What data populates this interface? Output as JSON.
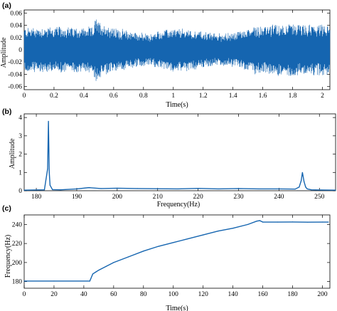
{
  "chart_data": [
    {
      "panel": "(a)",
      "type": "line",
      "xlabel": "Time(s)",
      "ylabel": "Amplitude",
      "xlim": [
        0,
        2.05
      ],
      "ylim": [
        -0.065,
        0.065
      ],
      "xticks": [
        0,
        0.2,
        0.4,
        0.6,
        0.8,
        1,
        1.2,
        1.4,
        1.6,
        1.8,
        2
      ],
      "yticks": [
        -0.06,
        -0.04,
        -0.02,
        0,
        0.02,
        0.04,
        0.06
      ],
      "xtick_labels": [
        "0",
        "0.2",
        "0.4",
        "0.6",
        "0.8",
        "1",
        "1.2",
        "1.4",
        "1.6",
        "1.8",
        "2"
      ],
      "ytick_labels": [
        "-0.06",
        "-0.04",
        "-0.02",
        "0",
        "0.02",
        "0.04",
        "0.06"
      ],
      "envelope": {
        "t": [
          0,
          0.2,
          0.4,
          0.46,
          0.48,
          0.5,
          0.6,
          0.7,
          0.8,
          0.85,
          0.9,
          1.0,
          1.1,
          1.2,
          1.3,
          1.4,
          1.5,
          1.55,
          1.6,
          1.7,
          1.8,
          1.9,
          2.0,
          2.05
        ],
        "amplitude": [
          0.036,
          0.037,
          0.036,
          0.036,
          0.052,
          0.046,
          0.035,
          0.031,
          0.026,
          0.025,
          0.03,
          0.034,
          0.033,
          0.029,
          0.026,
          0.027,
          0.034,
          0.04,
          0.038,
          0.041,
          0.042,
          0.04,
          0.04,
          0.039
        ]
      }
    },
    {
      "panel": "(b)",
      "type": "line",
      "xlabel": "Frequency(Hz)",
      "ylabel": "Amplitude",
      "xlim": [
        177,
        254
      ],
      "ylim": [
        0,
        4.2
      ],
      "xticks": [
        180,
        190,
        200,
        210,
        220,
        230,
        240,
        250
      ],
      "yticks": [
        0,
        1,
        2,
        3,
        4
      ],
      "xtick_labels": [
        "180",
        "190",
        "200",
        "210",
        "220",
        "230",
        "240",
        "250"
      ],
      "ytick_labels": [
        "0",
        "1",
        "2",
        "3",
        "4"
      ],
      "x": [
        177,
        182,
        182.8,
        183,
        183.2,
        183.4,
        184,
        186,
        190,
        193,
        196,
        200,
        205,
        210,
        215,
        220,
        225,
        230,
        235,
        240,
        244,
        245,
        245.5,
        245.8,
        246.2,
        246.6,
        247,
        248,
        250,
        254
      ],
      "y": [
        0.03,
        0.05,
        1.2,
        3.8,
        1.0,
        0.3,
        0.06,
        0.05,
        0.1,
        0.17,
        0.12,
        0.14,
        0.12,
        0.11,
        0.1,
        0.13,
        0.1,
        0.12,
        0.1,
        0.1,
        0.09,
        0.2,
        0.55,
        1.0,
        0.5,
        0.2,
        0.1,
        0.05,
        0.04,
        0.03
      ]
    },
    {
      "panel": "(c)",
      "type": "line",
      "xlabel": "Time(s)",
      "ylabel": "Frequency(Hz)",
      "xlim": [
        0,
        205
      ],
      "ylim": [
        173,
        250
      ],
      "xticks": [
        0,
        20,
        40,
        60,
        80,
        100,
        120,
        140,
        160,
        180,
        200
      ],
      "yticks": [
        180,
        200,
        220,
        240
      ],
      "xtick_labels": [
        "0",
        "20",
        "40",
        "60",
        "80",
        "100",
        "120",
        "140",
        "160",
        "180",
        "200"
      ],
      "ytick_labels": [
        "180",
        "200",
        "220",
        "240"
      ],
      "x": [
        0,
        20,
        44,
        46,
        48,
        50,
        55,
        60,
        70,
        80,
        90,
        100,
        110,
        120,
        130,
        140,
        150,
        156,
        158,
        160,
        170,
        180,
        190,
        200,
        204
      ],
      "y": [
        180.5,
        180.5,
        180.5,
        188,
        190,
        192,
        196,
        200,
        206,
        212,
        217,
        221,
        225,
        229,
        233,
        236,
        240,
        243.5,
        244,
        242.5,
        242.5,
        242.6,
        242.4,
        242.5,
        242.5
      ]
    }
  ]
}
